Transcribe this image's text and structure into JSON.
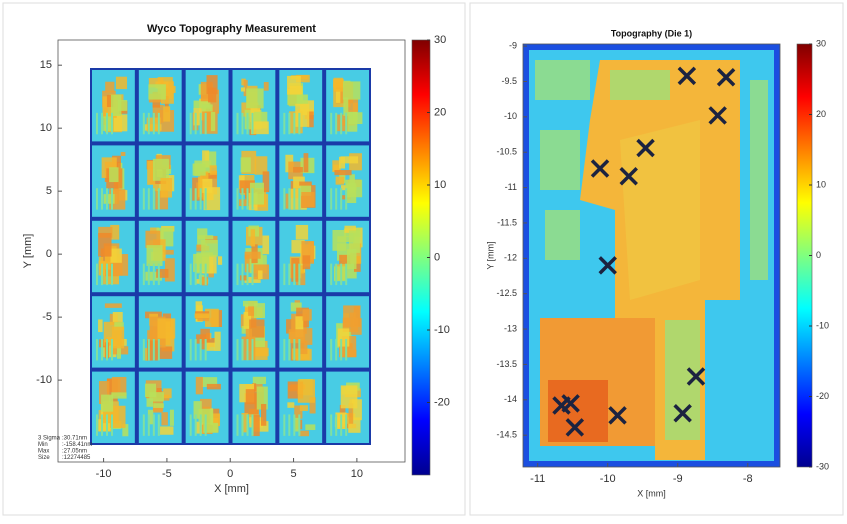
{
  "chart_data": [
    {
      "type": "heatmap",
      "title": "Wyco Topography Measurement",
      "xlabel": "X [mm]",
      "ylabel": "Y [mm]",
      "xlim": [
        -13.6,
        13.8
      ],
      "xticks": [
        -10,
        -5,
        0,
        5,
        10
      ],
      "ylim": [
        -16.5,
        17
      ],
      "yticks": [
        15,
        10,
        5,
        0,
        -5,
        -10
      ],
      "colorbar": {
        "lim": [
          -30,
          30
        ],
        "ticks": [
          30,
          20,
          10,
          0,
          -10,
          -20
        ]
      },
      "stats": [
        {
          "label": "3 Sigma",
          "value": ":30.71nm"
        },
        {
          "label": "Min",
          "value": ":-158.41nm"
        },
        {
          "label": "Max",
          "value": ":27.05nm"
        },
        {
          "label": "Size",
          "value": ":12274485"
        }
      ]
    },
    {
      "type": "heatmap",
      "title": "Topography (Die 1)",
      "xlabel": "X [mm]",
      "ylabel": "Y [mm]",
      "xlim": [
        -11.21,
        -7.54
      ],
      "xticks": [
        -11,
        -10,
        -9,
        -8
      ],
      "ylim": [
        -14.95,
        -8.97
      ],
      "yticks": [
        -9,
        -9.5,
        -10,
        -10.5,
        -11,
        -11.5,
        -12,
        -12.5,
        -13,
        -13.5,
        -14,
        -14.5
      ],
      "colorbar": {
        "lim": [
          -30,
          30
        ],
        "ticks": [
          30,
          20,
          10,
          0,
          -10,
          -20,
          -30
        ]
      },
      "markers": {
        "x": [
          -8.87,
          -8.31,
          -8.43,
          -9.46,
          -10.11,
          -9.7,
          -10.0,
          -8.74,
          -10.66,
          -10.53,
          -10.47,
          -9.86,
          -8.93
        ],
        "y": [
          -9.42,
          -9.44,
          -9.98,
          -10.44,
          -10.73,
          -10.84,
          -12.1,
          -13.67,
          -14.08,
          -14.05,
          -14.39,
          -14.22,
          -14.19
        ]
      }
    }
  ]
}
